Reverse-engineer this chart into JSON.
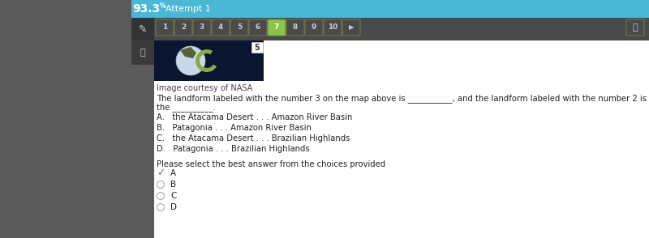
{
  "bg_color": "#5a5a5a",
  "header_bg": "#4ab8d4",
  "header_text": "93.3",
  "header_superscript": "%",
  "header_attempt": "Attempt 1",
  "nav_bg": "#4a4a4a",
  "nav_numbers": [
    "1",
    "2",
    "3",
    "4",
    "5",
    "6",
    "7",
    "8",
    "9",
    "10"
  ],
  "nav_active_index": 6,
  "nav_active_color": "#8bc34a",
  "nav_border_color": "#7a7a4a",
  "content_bg": "#ffffff",
  "image_caption": "Image courtesy of NASA",
  "question_line1": "The landform labeled with the number 3 on the map above is ___________, and the landform labeled with the number 2 is",
  "question_line2": "the __________.",
  "choices": [
    "A.   the Atacama Desert . . . Amazon River Basin",
    "B.   Patagonia . . . Amazon River Basin",
    "C.   the Atacama Desert . . . Brazilian Highlands",
    "D.   Patagonia . . . Brazilian Highlands"
  ],
  "instruction": "Please select the best answer from the choices provided",
  "answer_options": [
    "A",
    "B",
    "C",
    "D"
  ],
  "selected_answer": "A",
  "checkmark_color": "#4a9a3a",
  "radio_border": "#aaaaaa",
  "text_color": "#222222",
  "small_text_color": "#444444",
  "label5_text": "5",
  "img_dark_bg": "#0a1530",
  "left_panel_bg": "#3d3d3d",
  "pencil_area_bg": "#333333",
  "headphone_area_bg": "#3a3a3a"
}
